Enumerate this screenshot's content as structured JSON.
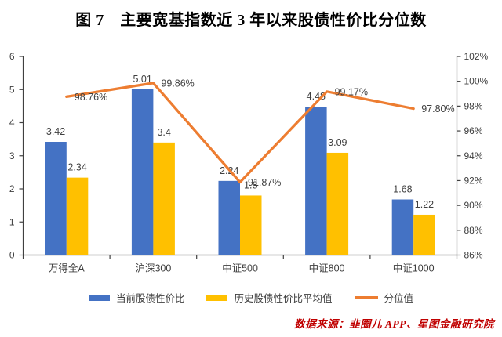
{
  "title": "图 7　主要宽基指数近 3 年以来股债性价比分位数",
  "source_note": "数据来源：韭圈儿 APP、星图金融研究院",
  "colors": {
    "bar_current": "#4472C4",
    "bar_average": "#FFC000",
    "line_percentile": "#ED7D31",
    "title_text": "#000000",
    "source_text": "#C00000",
    "axis_text": "#404040",
    "axis_line": "#404040",
    "background": "#FFFFFF"
  },
  "chart_data": {
    "type": "combo-bar-line",
    "title": "图 7　主要宽基指数近 3 年以来股债性价比分位数",
    "categories": [
      "万得全A",
      "沪深300",
      "中证500",
      "中证800",
      "中证1000"
    ],
    "series": [
      {
        "name": "当前股债性价比",
        "kind": "bar",
        "axis": "left",
        "color": "#4472C4",
        "values": [
          3.42,
          5.01,
          2.24,
          4.48,
          1.68
        ],
        "labels": [
          "3.42",
          "5.01",
          "2.24",
          "4.48",
          "1.68"
        ]
      },
      {
        "name": "历史股债性价比平均值",
        "kind": "bar",
        "axis": "left",
        "color": "#FFC000",
        "values": [
          2.34,
          3.4,
          1.8,
          3.09,
          1.22
        ],
        "labels": [
          "2.34",
          "3.4",
          "1.8",
          "3.09",
          "1.22"
        ]
      },
      {
        "name": "分位值",
        "kind": "line",
        "axis": "right",
        "color": "#ED7D31",
        "values": [
          98.76,
          99.86,
          91.87,
          99.17,
          97.8
        ],
        "labels": [
          "98.76%",
          "99.86%",
          "91.87%",
          "99.17%",
          "97.80%"
        ]
      }
    ],
    "left_axis": {
      "min": 0,
      "max": 6,
      "step": 1,
      "tick_labels": [
        "0",
        "1",
        "2",
        "3",
        "4",
        "5",
        "6"
      ]
    },
    "right_axis": {
      "min": 86,
      "max": 102,
      "step": 2,
      "tick_labels": [
        "86%",
        "88%",
        "90%",
        "92%",
        "94%",
        "96%",
        "98%",
        "100%",
        "102%"
      ]
    },
    "grid": false,
    "legend_position": "bottom"
  }
}
